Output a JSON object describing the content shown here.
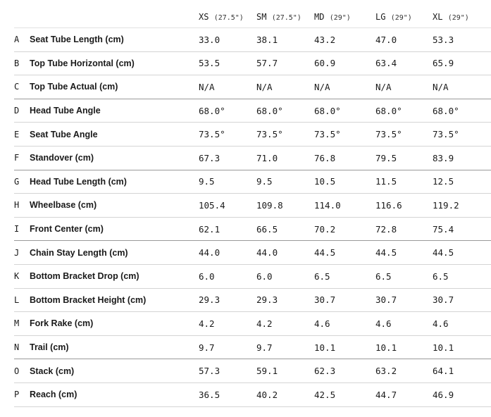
{
  "table": {
    "sizes": [
      {
        "label": "XS",
        "wheel": "(27.5\")"
      },
      {
        "label": "SM",
        "wheel": "(27.5\")"
      },
      {
        "label": "MD",
        "wheel": "(29\")"
      },
      {
        "label": "LG",
        "wheel": "(29\")"
      },
      {
        "label": "XL",
        "wheel": "(29\")"
      }
    ],
    "rows": [
      {
        "letter": "A",
        "name": "Seat Tube Length (cm)",
        "values": [
          "33.0",
          "38.1",
          "43.2",
          "47.0",
          "53.3"
        ]
      },
      {
        "letter": "B",
        "name": "Top Tube Horizontal (cm)",
        "values": [
          "53.5",
          "57.7",
          "60.9",
          "63.4",
          "65.9"
        ]
      },
      {
        "letter": "C",
        "name": "Top Tube Actual (cm)",
        "values": [
          "N/A",
          "N/A",
          "N/A",
          "N/A",
          "N/A"
        ]
      },
      {
        "letter": "D",
        "name": "Head Tube Angle",
        "values": [
          "68.0°",
          "68.0°",
          "68.0°",
          "68.0°",
          "68.0°"
        ]
      },
      {
        "letter": "E",
        "name": "Seat Tube Angle",
        "values": [
          "73.5°",
          "73.5°",
          "73.5°",
          "73.5°",
          "73.5°"
        ]
      },
      {
        "letter": "F",
        "name": "Standover (cm)",
        "values": [
          "67.3",
          "71.0",
          "76.8",
          "79.5",
          "83.9"
        ]
      },
      {
        "letter": "G",
        "name": "Head Tube Length (cm)",
        "values": [
          "9.5",
          "9.5",
          "10.5",
          "11.5",
          "12.5"
        ]
      },
      {
        "letter": "H",
        "name": "Wheelbase (cm)",
        "values": [
          "105.4",
          "109.8",
          "114.0",
          "116.6",
          "119.2"
        ]
      },
      {
        "letter": "I",
        "name": "Front Center (cm)",
        "values": [
          "62.1",
          "66.5",
          "70.2",
          "72.8",
          "75.4"
        ]
      },
      {
        "letter": "J",
        "name": "Chain Stay Length (cm)",
        "values": [
          "44.0",
          "44.0",
          "44.5",
          "44.5",
          "44.5"
        ]
      },
      {
        "letter": "K",
        "name": "Bottom Bracket Drop (cm)",
        "values": [
          "6.0",
          "6.0",
          "6.5",
          "6.5",
          "6.5"
        ]
      },
      {
        "letter": "L",
        "name": "Bottom Bracket Height (cm)",
        "values": [
          "29.3",
          "29.3",
          "30.7",
          "30.7",
          "30.7"
        ]
      },
      {
        "letter": "M",
        "name": "Fork Rake (cm)",
        "values": [
          "4.2",
          "4.2",
          "4.6",
          "4.6",
          "4.6"
        ]
      },
      {
        "letter": "N",
        "name": "Trail (cm)",
        "values": [
          "9.7",
          "9.7",
          "10.1",
          "10.1",
          "10.1"
        ]
      },
      {
        "letter": "O",
        "name": "Stack (cm)",
        "values": [
          "57.3",
          "59.1",
          "62.3",
          "63.2",
          "64.1"
        ]
      },
      {
        "letter": "P",
        "name": "Reach (cm)",
        "values": [
          "36.5",
          "40.2",
          "42.5",
          "44.7",
          "46.9"
        ]
      }
    ]
  }
}
